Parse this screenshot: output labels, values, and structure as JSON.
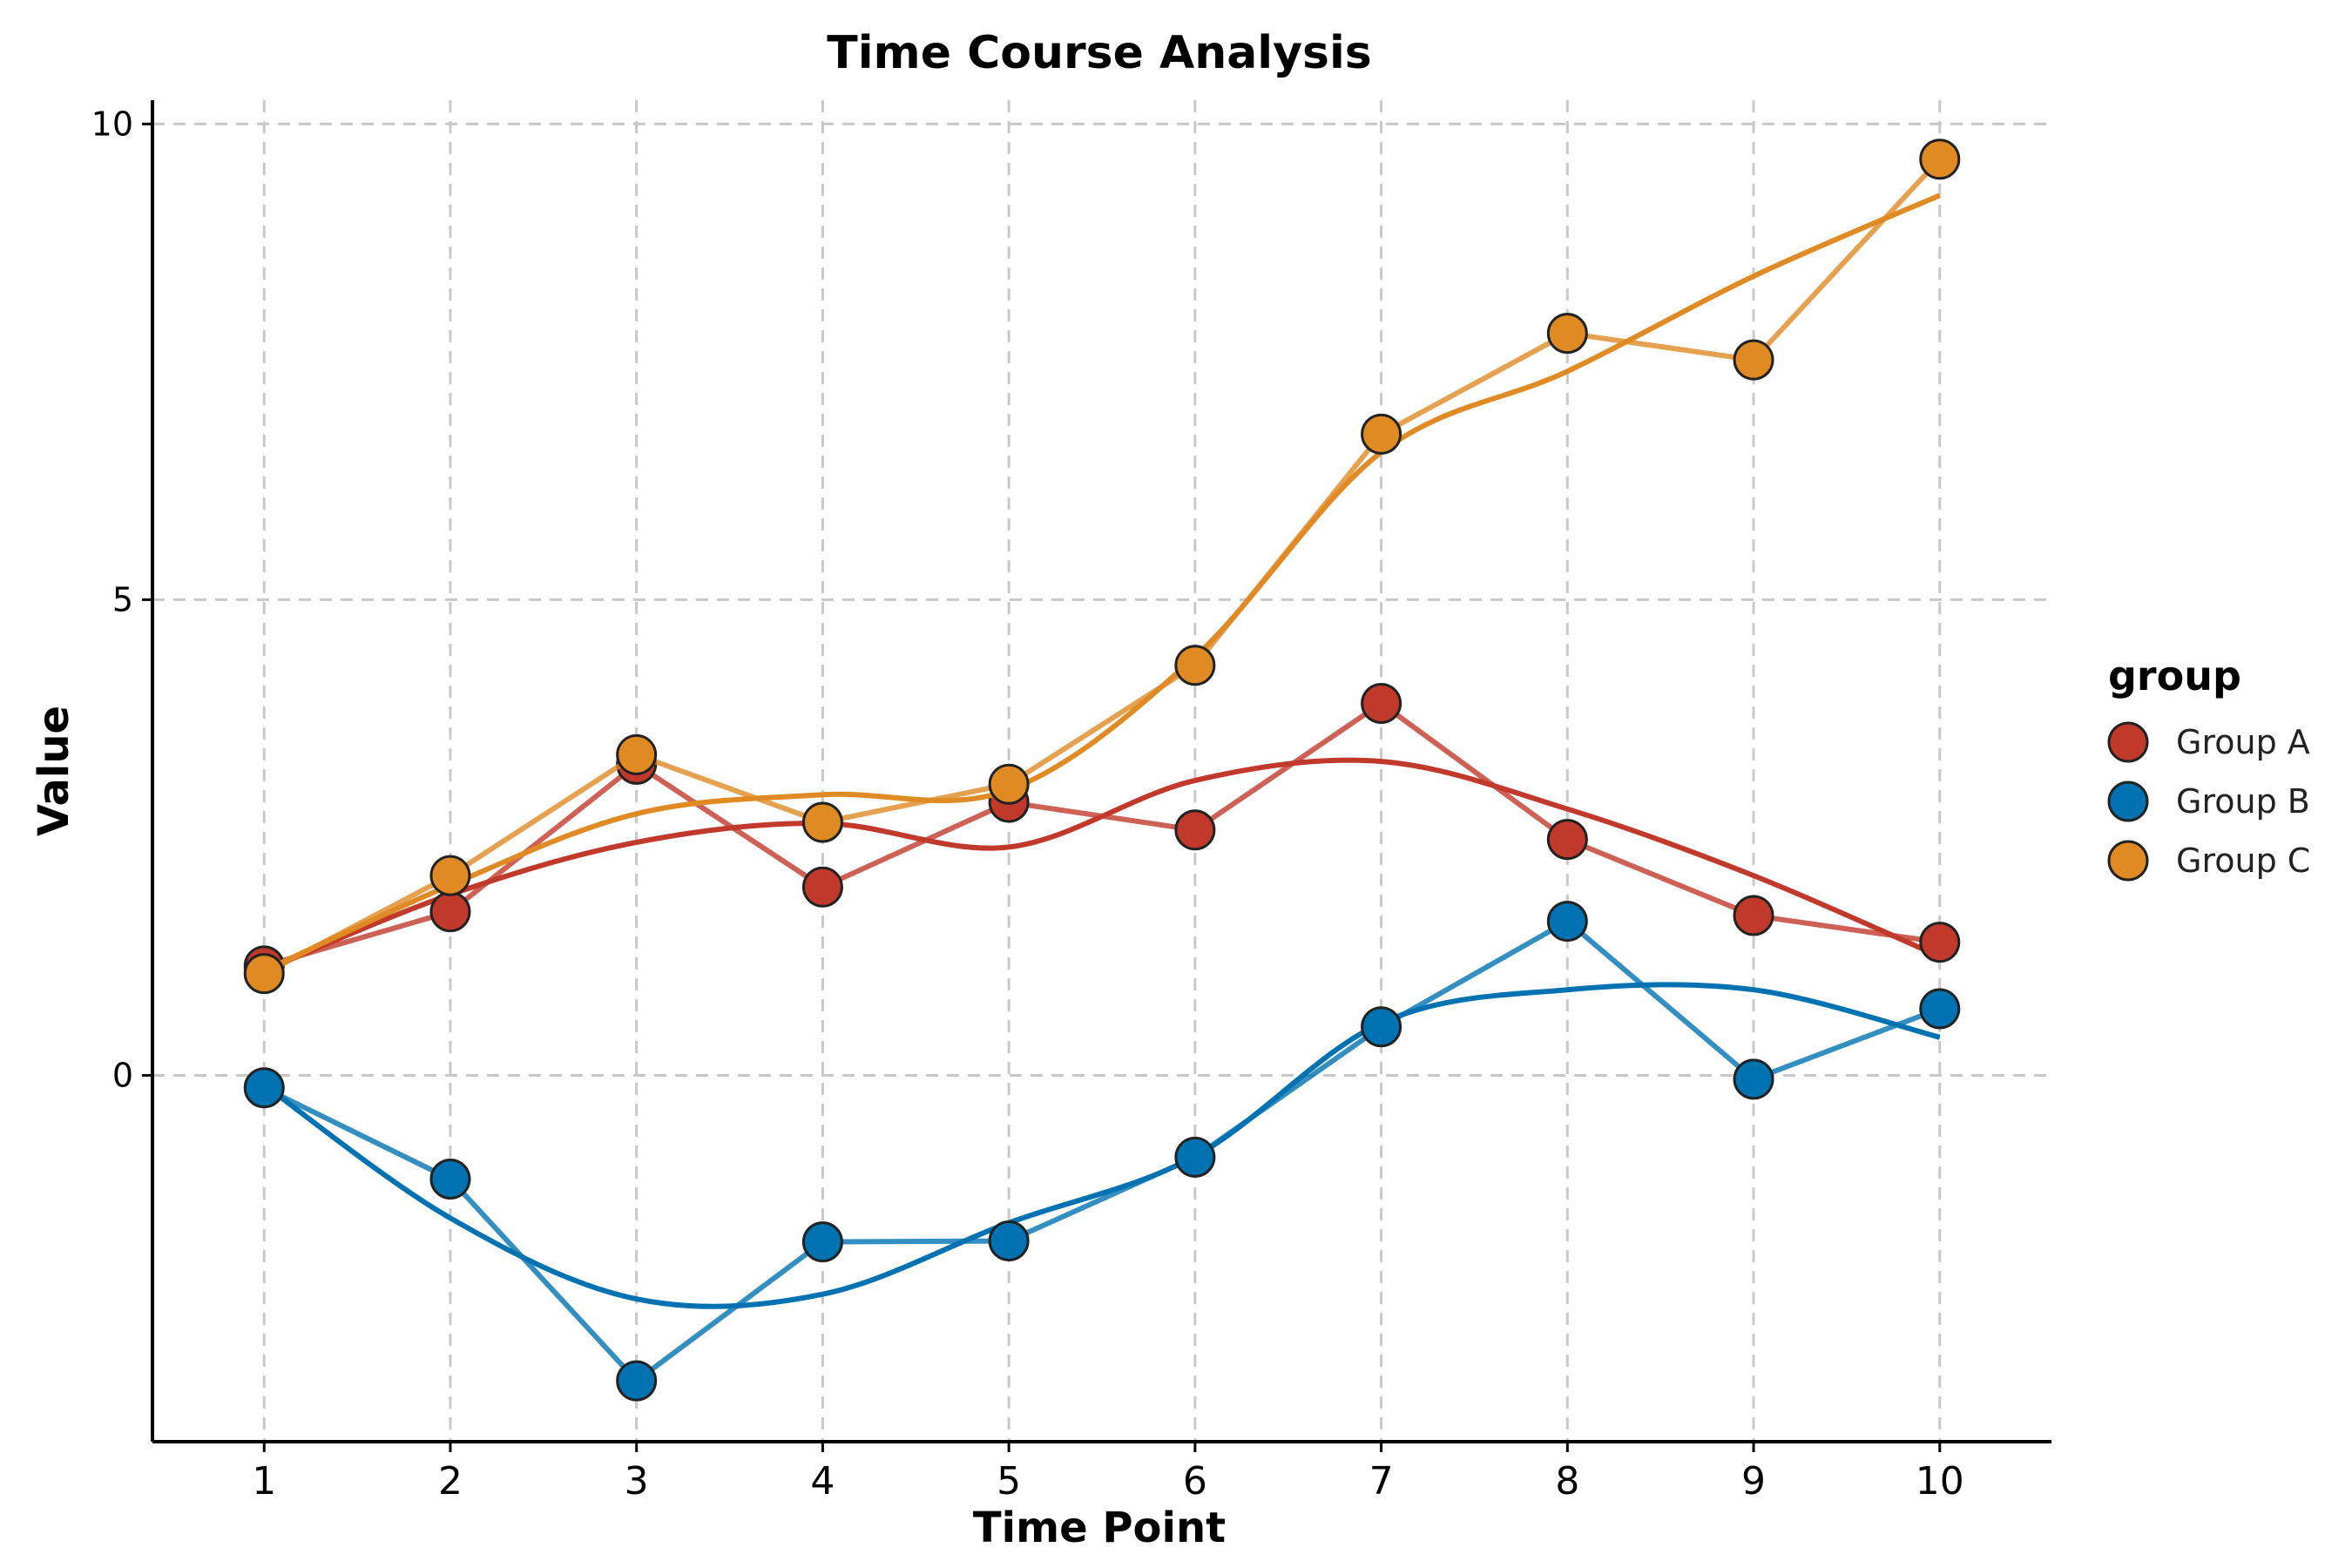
{
  "chart_data": {
    "type": "line",
    "title": "Time Course Analysis",
    "xlabel": "Time Point",
    "ylabel": "Value",
    "x": [
      1,
      2,
      3,
      4,
      5,
      6,
      7,
      8,
      9,
      10
    ],
    "xlim": [
      0.4,
      10.6
    ],
    "ylim": [
      -3.85,
      10.25
    ],
    "x_ticks": [
      1,
      2,
      3,
      4,
      5,
      6,
      7,
      8,
      9,
      10
    ],
    "y_ticks": [
      0,
      5,
      10
    ],
    "grid": true,
    "legend": {
      "title": "group",
      "placement": "right"
    },
    "series": [
      {
        "name": "Group A",
        "color": "#c0392b",
        "values": [
          1.15,
          1.72,
          3.27,
          1.98,
          2.87,
          2.58,
          3.91,
          2.48,
          1.68,
          1.4
        ],
        "smooth": [
          1.1,
          1.9,
          2.45,
          2.65,
          2.4,
          3.1,
          3.3,
          2.8,
          2.1,
          1.25
        ]
      },
      {
        "name": "Group B",
        "color": "#0072b2",
        "values": [
          -0.13,
          -1.09,
          -3.21,
          -1.75,
          -1.74,
          -0.86,
          0.51,
          1.62,
          -0.04,
          0.7
        ],
        "smooth": [
          -0.1,
          -1.5,
          -2.35,
          -2.3,
          -1.55,
          -0.85,
          0.55,
          0.9,
          0.9,
          0.4
        ]
      },
      {
        "name": "Group C",
        "color": "#e08a24",
        "values": [
          1.07,
          2.1,
          3.37,
          2.66,
          3.06,
          4.31,
          6.74,
          7.8,
          7.52,
          9.63
        ],
        "smooth": [
          1.1,
          2.0,
          2.75,
          2.95,
          3.0,
          4.4,
          6.55,
          7.4,
          8.4,
          9.25
        ]
      }
    ]
  }
}
